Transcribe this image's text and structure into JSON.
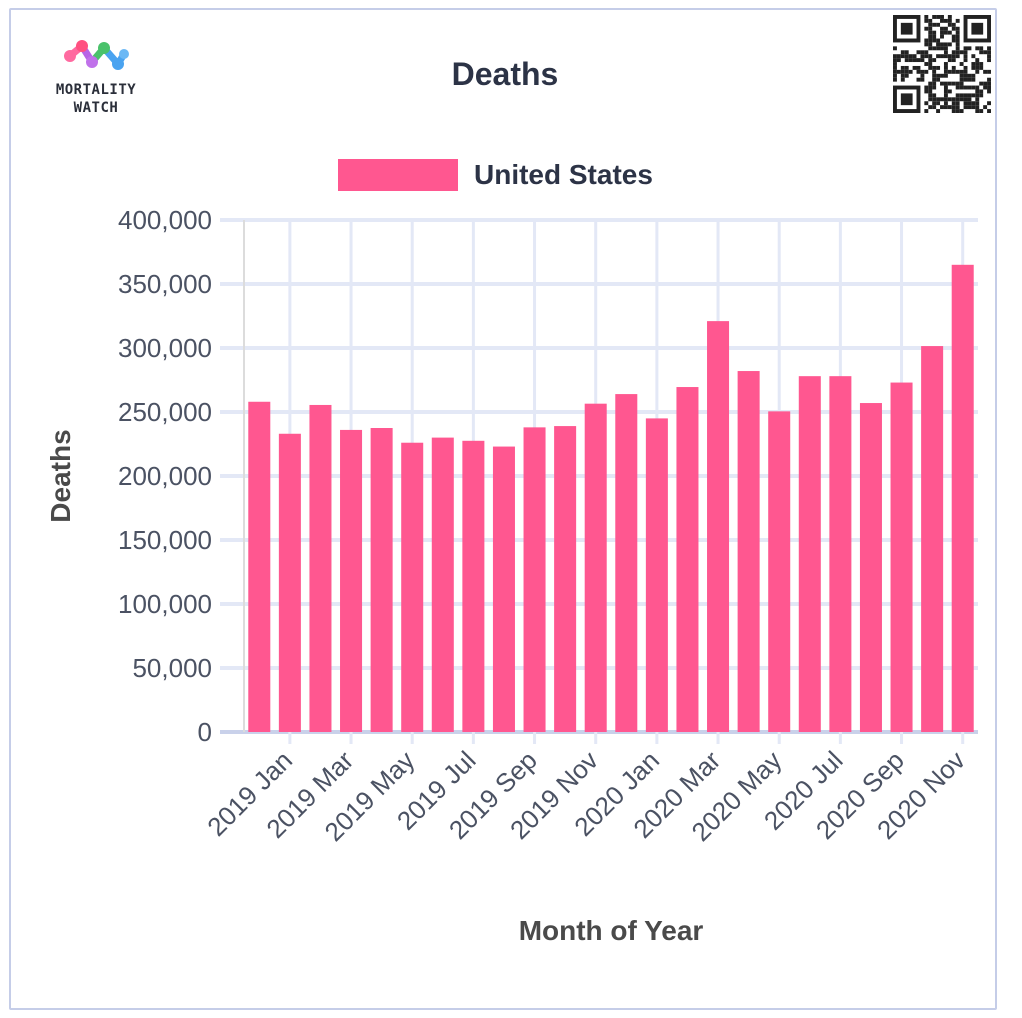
{
  "logo": {
    "text_line1": "MORTALITY",
    "text_line2": "WATCH"
  },
  "chart_data": {
    "type": "bar",
    "title": "Deaths",
    "xlabel": "Month of Year",
    "ylabel": "Deaths",
    "ylim": [
      0,
      400000
    ],
    "yticks": [
      "0",
      "50,000",
      "100,000",
      "150,000",
      "200,000",
      "250,000",
      "300,000",
      "350,000",
      "400,000"
    ],
    "ytick_values": [
      0,
      50000,
      100000,
      150000,
      200000,
      250000,
      300000,
      350000,
      400000
    ],
    "categories": [
      "2019 Jan",
      "2019 Feb",
      "2019 Mar",
      "2019 Apr",
      "2019 May",
      "2019 Jun",
      "2019 Jul",
      "2019 Aug",
      "2019 Sep",
      "2019 Oct",
      "2019 Nov",
      "2019 Dec",
      "2020 Jan",
      "2020 Feb",
      "2020 Mar",
      "2020 Apr",
      "2020 May",
      "2020 Jun",
      "2020 Jul",
      "2020 Aug",
      "2020 Sep",
      "2020 Oct",
      "2020 Nov",
      "2020 Dec"
    ],
    "xtick_labels": [
      "2019 Jan",
      "2019 Mar",
      "2019 May",
      "2019 Jul",
      "2019 Sep",
      "2019 Nov",
      "2020 Jan",
      "2020 Mar",
      "2020 May",
      "2020 Jul",
      "2020 Sep",
      "2020 Nov"
    ],
    "series": [
      {
        "name": "United States",
        "values": [
          258000,
          233000,
          255500,
          236000,
          237500,
          226000,
          230000,
          227500,
          223000,
          238000,
          239000,
          256500,
          264000,
          245000,
          269500,
          321000,
          282000,
          250500,
          278000,
          278000,
          257000,
          273000,
          301500,
          365000
        ]
      }
    ],
    "grid": true,
    "legend": "top-center",
    "colors": {
      "bar": "#ff5790",
      "grid": "#e3e8f6",
      "axis": "#c9d1ea"
    }
  }
}
